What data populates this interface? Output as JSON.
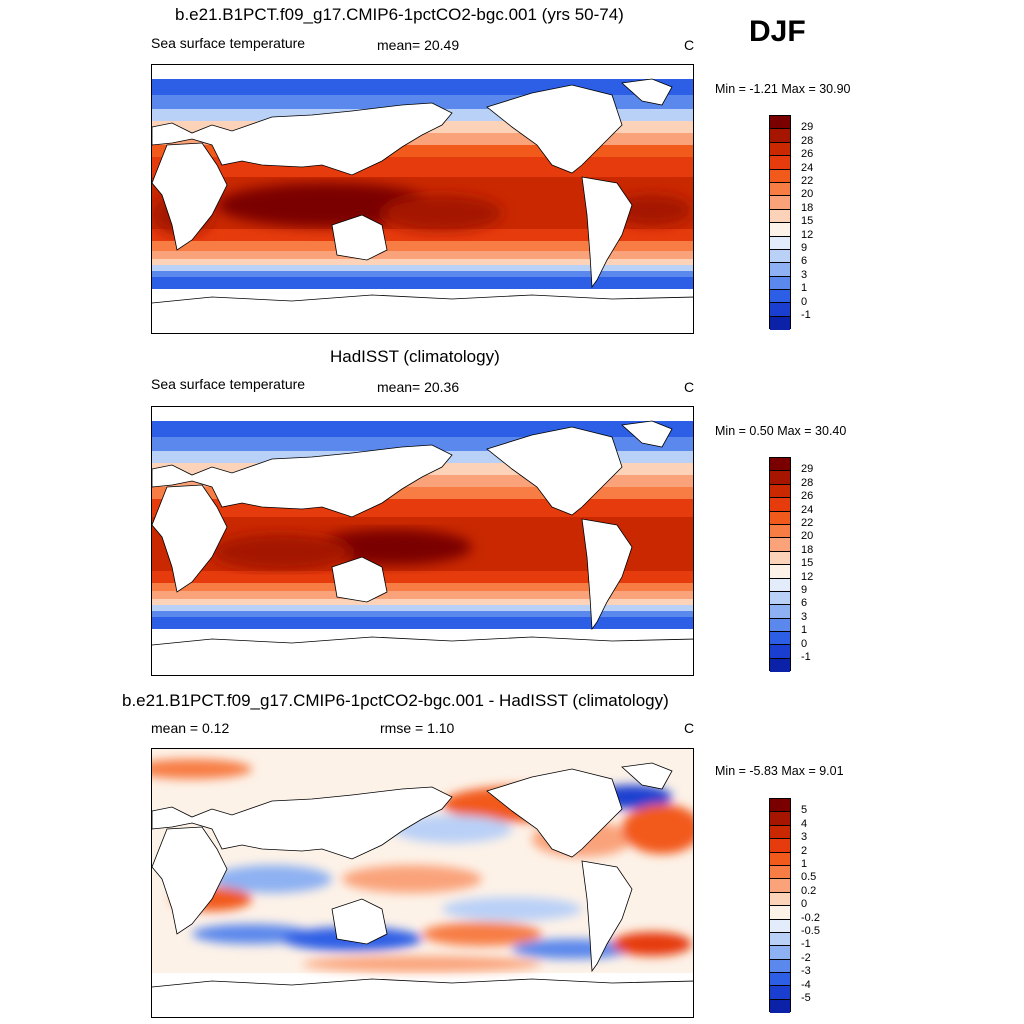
{
  "season": "DJF",
  "panels": [
    {
      "title": "b.e21.B1PCT.f09_g17.CMIP6-1pctCO2-bgc.001 (yrs 50-74)",
      "left_label": "Sea surface temperature",
      "mid_label": "mean=  20.49",
      "units": "C",
      "minmax": "Min =  -1.21 Max =  30.90",
      "colorbar": {
        "labels": [
          "29",
          "28",
          "26",
          "24",
          "22",
          "20",
          "18",
          "15",
          "12",
          "9",
          "6",
          "3",
          "1",
          "0",
          "-1"
        ],
        "colors": [
          "#7a0000",
          "#a51500",
          "#c92800",
          "#e63b0c",
          "#f25a1c",
          "#f77d45",
          "#faa37a",
          "#fcd2b8",
          "#fdf2e8",
          "#e2ecfb",
          "#b9d0f7",
          "#8db1f2",
          "#5b88ec",
          "#2d5fe6",
          "#1a3fd0",
          "#0b22a8"
        ]
      }
    },
    {
      "title": "HadISST (climatology)",
      "left_label": "Sea surface temperature",
      "mid_label": "mean=  20.36",
      "units": "C",
      "minmax": "Min =   0.50 Max =  30.40",
      "colorbar": {
        "labels": [
          "29",
          "28",
          "26",
          "24",
          "22",
          "20",
          "18",
          "15",
          "12",
          "9",
          "6",
          "3",
          "1",
          "0",
          "-1"
        ],
        "colors": [
          "#7a0000",
          "#a51500",
          "#c92800",
          "#e63b0c",
          "#f25a1c",
          "#f77d45",
          "#faa37a",
          "#fcd2b8",
          "#fdf2e8",
          "#e2ecfb",
          "#b9d0f7",
          "#8db1f2",
          "#5b88ec",
          "#2d5fe6",
          "#1a3fd0",
          "#0b22a8"
        ]
      }
    },
    {
      "title": "b.e21.B1PCT.f09_g17.CMIP6-1pctCO2-bgc.001 - HadISST (climatology)",
      "left_label": "mean =   0.12",
      "mid_label": "rmse =   1.10",
      "units": "C",
      "minmax": "Min =  -5.83 Max =   9.01",
      "colorbar": {
        "labels": [
          "5",
          "4",
          "3",
          "2",
          "1",
          "0.5",
          "0.2",
          "0",
          "-0.2",
          "-0.5",
          "-1",
          "-2",
          "-3",
          "-4",
          "-5"
        ],
        "colors": [
          "#7a0000",
          "#a51500",
          "#c92800",
          "#e63b0c",
          "#f25a1c",
          "#f77d45",
          "#faa37a",
          "#fcd2b8",
          "#fdf2e8",
          "#e2ecfb",
          "#b9d0f7",
          "#8db1f2",
          "#5b88ec",
          "#2d5fe6",
          "#1a3fd0",
          "#0b22a8"
        ]
      }
    }
  ]
}
